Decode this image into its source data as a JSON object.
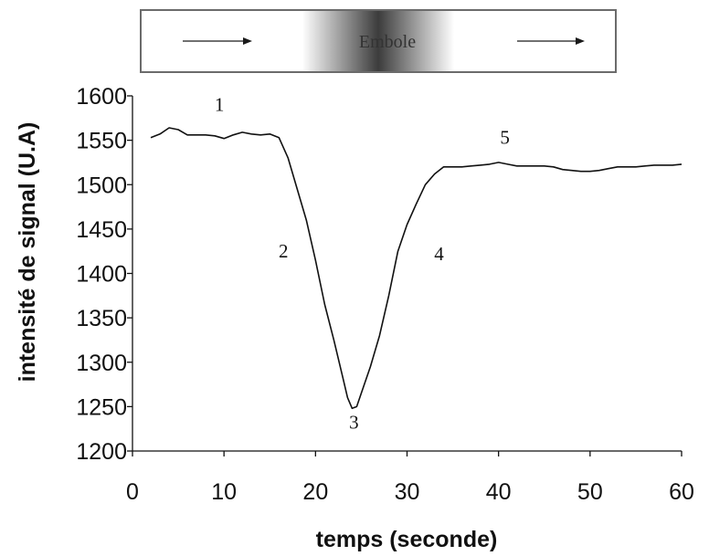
{
  "banner": {
    "label": "Embole",
    "colors": {
      "border": "#6b6b6b",
      "fade_edge": "#ffffff",
      "fade_center": "#3c3c3c",
      "arrow": "#1a1a1a"
    }
  },
  "chart_data": {
    "type": "line",
    "title": "",
    "xlabel": "temps (seconde)",
    "ylabel": "intensité de signal (U.A)",
    "xlim": [
      0,
      60
    ],
    "ylim": [
      1200,
      1600
    ],
    "xticks": [
      0,
      10,
      20,
      30,
      40,
      50,
      60
    ],
    "yticks": [
      1200,
      1250,
      1300,
      1350,
      1400,
      1450,
      1500,
      1550,
      1600
    ],
    "grid": false,
    "legend": "none",
    "series": [
      {
        "color": "#111111",
        "x": [
          2,
          3,
          4,
          5,
          6,
          7,
          8,
          9,
          10,
          11,
          12,
          13,
          14,
          15,
          16,
          17,
          18,
          19,
          20,
          21,
          22,
          23,
          23.5,
          24,
          24.5,
          25,
          26,
          27,
          28,
          29,
          30,
          31,
          32,
          33,
          34,
          35,
          36,
          37,
          38,
          39,
          40,
          41,
          42,
          43,
          44,
          45,
          46,
          47,
          48,
          49,
          50,
          51,
          52,
          53,
          54,
          55,
          56,
          57,
          58,
          59,
          60
        ],
        "y": [
          1553,
          1557,
          1564,
          1562,
          1556,
          1556,
          1556,
          1555,
          1552,
          1556,
          1559,
          1557,
          1556,
          1557,
          1553,
          1530,
          1495,
          1460,
          1415,
          1365,
          1325,
          1282,
          1260,
          1248,
          1250,
          1265,
          1295,
          1330,
          1375,
          1425,
          1455,
          1478,
          1500,
          1512,
          1520,
          1520,
          1520,
          1521,
          1522,
          1523,
          1525,
          1523,
          1521,
          1521,
          1521,
          1521,
          1520,
          1517,
          1516,
          1515,
          1515,
          1516,
          1518,
          1520,
          1520,
          1520,
          1521,
          1522,
          1522,
          1522,
          1523
        ]
      }
    ],
    "annotations": [
      {
        "text": "1",
        "x": 9.5,
        "y": 1583
      },
      {
        "text": "2",
        "x": 16.5,
        "y": 1418
      },
      {
        "text": "3",
        "x": 24.2,
        "y": 1225
      },
      {
        "text": "4",
        "x": 33.5,
        "y": 1415
      },
      {
        "text": "5",
        "x": 40.7,
        "y": 1546
      }
    ]
  }
}
